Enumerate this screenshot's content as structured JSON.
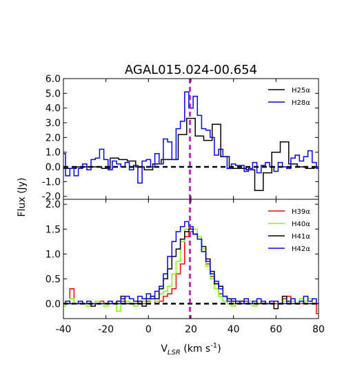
{
  "title": "AGAL015.024-00.654",
  "xlabel": "V_{LSR} (km s^{-1})",
  "ylabel": "Flux (Jy)",
  "vline_x": 19.5,
  "chart_data": [
    {
      "type": "line",
      "panel": "top",
      "title": "AGAL015.024-00.654",
      "xlim": [
        -40,
        80
      ],
      "ylim": [
        -2.2,
        6.0
      ],
      "xticks": [
        -40,
        -20,
        0,
        20,
        40,
        60,
        80
      ],
      "yticks": [
        -2.0,
        -1.0,
        0.0,
        1.0,
        2.0,
        3.0,
        4.0,
        5.0,
        6.0
      ],
      "ytick_labels": [
        "-2.0",
        "-1.0",
        "0.0",
        "1.0",
        "2.0",
        "3.0",
        "4.0",
        "5.0",
        "6.0"
      ],
      "legend": "top-right",
      "reference_lines": {
        "y": 0,
        "x": 19.5
      },
      "series": [
        {
          "name": "H25α",
          "color": "#000000",
          "x": [
            -40,
            -36,
            -32,
            -28,
            -24,
            -20,
            -16,
            -12,
            -8,
            -4,
            0,
            4,
            8,
            12,
            16,
            20,
            24,
            28,
            32,
            36,
            40,
            44,
            48,
            52,
            56,
            60,
            64,
            68,
            72,
            76,
            80
          ],
          "y": [
            -0.1,
            -0.1,
            0.0,
            0.0,
            0.0,
            -0.1,
            0.6,
            0.5,
            0.4,
            0.0,
            -0.2,
            0.2,
            0.5,
            0.5,
            2.2,
            3.3,
            2.1,
            1.8,
            2.9,
            0.7,
            -0.1,
            -0.1,
            -0.2,
            -1.6,
            -0.4,
            1.0,
            1.7,
            0.2,
            0.0,
            -0.1,
            0.0
          ]
        },
        {
          "name": "H28α",
          "color": "#0000ff",
          "x": [
            -40,
            -38,
            -36,
            -34,
            -32,
            -30,
            -28,
            -26,
            -24,
            -22,
            -20,
            -18,
            -16,
            -14,
            -12,
            -10,
            -8,
            -6,
            -4,
            -2,
            0,
            2,
            4,
            6,
            8,
            10,
            12,
            14,
            16,
            18,
            20,
            22,
            24,
            26,
            28,
            30,
            32,
            34,
            36,
            38,
            40,
            42,
            44,
            46,
            48,
            50,
            52,
            54,
            56,
            58,
            60,
            62,
            64,
            66,
            68,
            70,
            72,
            74,
            76,
            78,
            80
          ],
          "y": [
            0.9,
            -0.6,
            -0.1,
            -0.6,
            -0.1,
            0.2,
            -0.2,
            0.5,
            0.6,
            1.2,
            0.5,
            -0.2,
            0.4,
            0.2,
            0.0,
            0.3,
            -0.2,
            0.1,
            -1.1,
            0.4,
            0.5,
            0.0,
            0.9,
            0.2,
            1.9,
            1.7,
            0.5,
            2.6,
            3.1,
            5.1,
            4.0,
            4.8,
            3.5,
            2.6,
            2.5,
            2.0,
            0.8,
            1.2,
            0.7,
            -0.1,
            0.2,
            0.1,
            0.1,
            -0.3,
            -0.1,
            0.3,
            -0.4,
            0.1,
            0.3,
            0.0,
            -0.3,
            0.3,
            0.0,
            -0.1,
            0.6,
            0.8,
            0.4,
            0.7,
            1.1,
            0.3,
            -0.1
          ]
        }
      ]
    },
    {
      "type": "line",
      "panel": "bottom",
      "xlim": [
        -40,
        80
      ],
      "ylim": [
        -0.3,
        2.1
      ],
      "xticks": [
        -40,
        -20,
        0,
        20,
        40,
        60,
        80
      ],
      "yticks": [
        0.0,
        0.5,
        1.0,
        1.5,
        2.0
      ],
      "ytick_labels": [
        "0.0",
        "0.5",
        "1.0",
        "1.5",
        "2.0"
      ],
      "legend": "top-right",
      "reference_lines": {
        "y": 0,
        "x": 19.5
      },
      "series": [
        {
          "name": "H39α",
          "color": "#ff0000",
          "x": [
            -40,
            -38,
            -36,
            -34,
            -32,
            -30,
            -28,
            -26,
            -24,
            -22,
            -20,
            -18,
            -16,
            -14,
            -12,
            -10,
            -8,
            -6,
            -4,
            -2,
            0,
            2,
            4,
            6,
            8,
            10,
            12,
            14,
            16,
            18,
            20,
            22,
            24,
            26,
            28,
            30,
            32,
            34,
            36,
            38,
            40,
            42,
            44,
            46,
            48,
            50,
            52,
            54,
            56,
            58,
            60,
            62,
            64,
            66,
            68,
            70,
            72,
            74,
            76,
            78,
            80
          ],
          "y": [
            0.0,
            0.0,
            0.3,
            0.0,
            0.05,
            0.0,
            0.0,
            0.0,
            0.0,
            0.05,
            0.0,
            0.0,
            0.0,
            0.0,
            0.05,
            0.0,
            0.0,
            0.0,
            0.0,
            0.0,
            0.05,
            0.1,
            0.0,
            0.05,
            0.15,
            0.2,
            0.3,
            0.6,
            0.8,
            1.35,
            1.45,
            1.4,
            1.3,
            1.05,
            0.8,
            0.55,
            0.4,
            0.2,
            0.05,
            0.1,
            0.0,
            0.05,
            0.0,
            0.05,
            0.0,
            0.0,
            0.0,
            0.0,
            0.0,
            0.05,
            0.0,
            0.0,
            0.1,
            0.15,
            0.05,
            0.0,
            0.0,
            0.05,
            0.1,
            0.0,
            -0.2
          ]
        },
        {
          "name": "H40α",
          "color": "#7fff00",
          "x": [
            -40,
            -38,
            -36,
            -34,
            -32,
            -30,
            -28,
            -26,
            -24,
            -22,
            -20,
            -18,
            -16,
            -14,
            -12,
            -10,
            -8,
            -6,
            -4,
            -2,
            0,
            2,
            4,
            6,
            8,
            10,
            12,
            14,
            16,
            18,
            20,
            22,
            24,
            26,
            28,
            30,
            32,
            34,
            36,
            38,
            40,
            42,
            44,
            46,
            48,
            50,
            52,
            54,
            56,
            58,
            60,
            62,
            64,
            66,
            68,
            70,
            72,
            74,
            76,
            78,
            80
          ],
          "y": [
            -0.05,
            0.05,
            0.1,
            0.0,
            0.05,
            0.0,
            -0.05,
            0.0,
            0.05,
            0.0,
            -0.05,
            0.0,
            0.0,
            -0.15,
            0.0,
            0.05,
            0.0,
            -0.05,
            0.0,
            0.05,
            0.0,
            0.1,
            0.05,
            0.2,
            0.25,
            0.35,
            0.6,
            0.85,
            1.25,
            1.5,
            1.55,
            1.5,
            1.35,
            1.1,
            0.75,
            0.5,
            0.3,
            0.15,
            0.05,
            0.0,
            -0.05,
            0.0,
            0.05,
            0.0,
            0.05,
            -0.05,
            0.0,
            0.05,
            0.0,
            0.0,
            -0.1,
            0.0,
            0.05,
            0.0,
            0.05,
            0.0,
            0.1,
            0.05,
            0.1,
            0.0,
            0.0
          ]
        },
        {
          "name": "H41α",
          "color": "#000000",
          "x": [
            -40,
            -38,
            -36,
            -34,
            -32,
            -30,
            -28,
            -26,
            -24,
            -22,
            -20,
            -18,
            -16,
            -14,
            -12,
            -10,
            -8,
            -6,
            -4,
            -2,
            0,
            2,
            4,
            6,
            8,
            10,
            12,
            14,
            16,
            18,
            20,
            22,
            24,
            26,
            28,
            30,
            32,
            34,
            36,
            38,
            40,
            42,
            44,
            46,
            48,
            50,
            52,
            54,
            56,
            58,
            60,
            62,
            64,
            66,
            68,
            70,
            72,
            74,
            76,
            78,
            80
          ],
          "y": [
            0.0,
            0.0,
            0.0,
            0.0,
            0.0,
            0.0,
            0.0,
            -0.05,
            0.0,
            0.0,
            0.0,
            0.0,
            0.0,
            0.05,
            0.15,
            0.0,
            0.0,
            0.0,
            0.05,
            -0.05,
            0.1,
            0.15,
            0.1,
            0.3,
            0.5,
            0.7,
            0.95,
            1.1,
            1.3,
            1.45,
            1.5,
            1.4,
            1.3,
            1.15,
            0.9,
            0.65,
            0.4,
            0.35,
            0.15,
            0.1,
            0.05,
            0.0,
            0.05,
            0.0,
            0.0,
            0.05,
            0.0,
            0.05,
            0.0,
            0.0,
            -0.1,
            0.0,
            0.15,
            0.05,
            0.0,
            0.0,
            0.05,
            0.0,
            0.0,
            0.0,
            0.0
          ]
        },
        {
          "name": "H42α",
          "color": "#0000ff",
          "x": [
            -40,
            -38,
            -36,
            -34,
            -32,
            -30,
            -28,
            -26,
            -24,
            -22,
            -20,
            -18,
            -16,
            -14,
            -12,
            -10,
            -8,
            -6,
            -4,
            -2,
            0,
            2,
            4,
            6,
            8,
            10,
            12,
            14,
            16,
            18,
            20,
            22,
            24,
            26,
            28,
            30,
            32,
            34,
            36,
            38,
            40,
            42,
            44,
            46,
            48,
            50,
            52,
            54,
            56,
            58,
            60,
            62,
            64,
            66,
            68,
            70,
            72,
            74,
            76,
            78,
            80
          ],
          "y": [
            0.0,
            0.05,
            0.0,
            0.0,
            0.05,
            0.0,
            0.05,
            0.0,
            0.0,
            0.0,
            0.0,
            0.05,
            0.0,
            0.0,
            0.1,
            0.15,
            0.1,
            0.05,
            0.15,
            0.1,
            0.2,
            0.1,
            0.25,
            0.35,
            0.6,
            0.95,
            1.25,
            1.45,
            1.55,
            1.65,
            1.55,
            1.4,
            1.3,
            1.05,
            0.85,
            0.6,
            0.45,
            0.3,
            0.15,
            0.05,
            0.1,
            0.05,
            0.0,
            0.1,
            0.0,
            0.05,
            0.1,
            0.05,
            0.0,
            0.05,
            0.05,
            0.0,
            0.0,
            0.05,
            0.1,
            0.0,
            0.05,
            0.15,
            0.05,
            0.1,
            0.0
          ]
        }
      ]
    }
  ]
}
